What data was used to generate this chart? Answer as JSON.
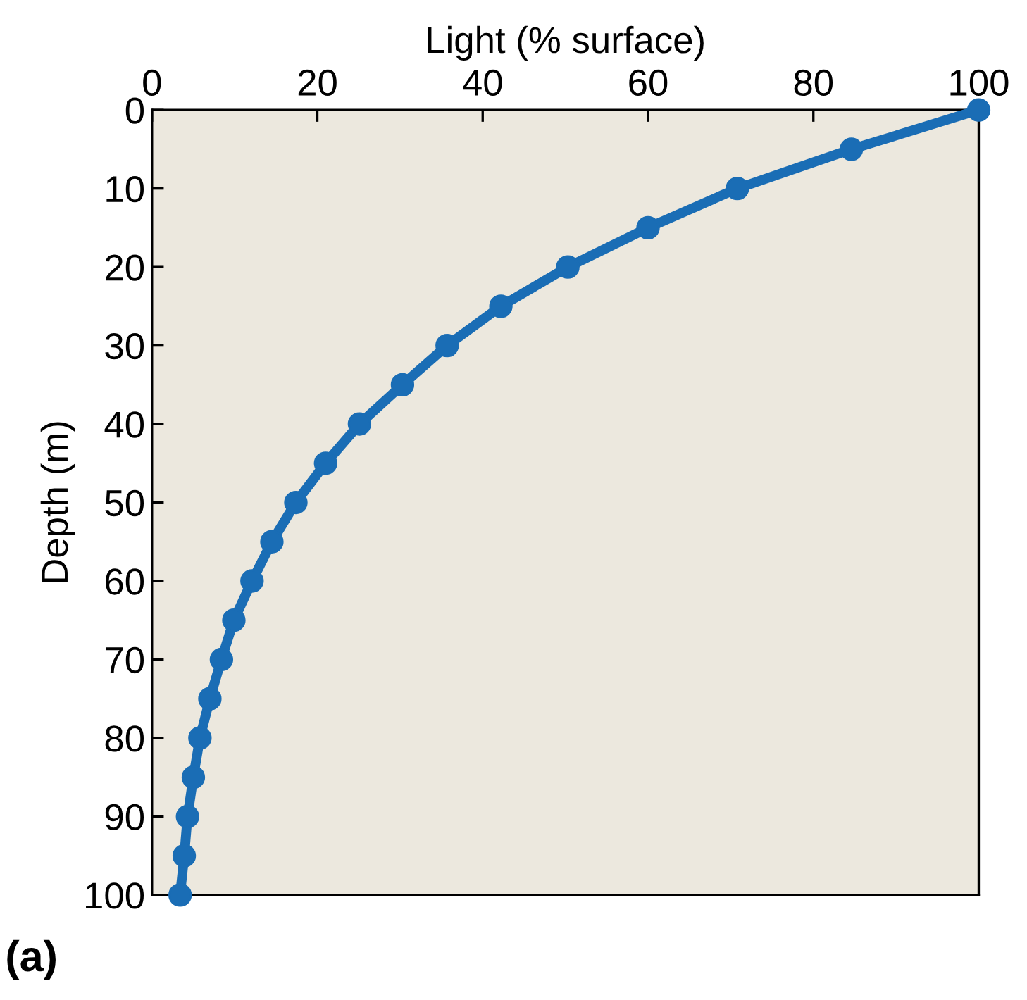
{
  "chart_data": {
    "type": "line",
    "xlabel": "Light (% surface)",
    "ylabel": "Depth (m)",
    "x": [
      100,
      84.6,
      70.8,
      60,
      50.3,
      42.2,
      35.7,
      30.3,
      25.1,
      21,
      17.4,
      14.5,
      12.1,
      9.9,
      8.4,
      7,
      5.8,
      5,
      4.3,
      3.9,
      3.4
    ],
    "series": [
      {
        "color": "#1a6db5",
        "values": [
          0,
          5,
          10,
          15,
          20,
          25,
          30,
          35,
          40,
          45,
          50,
          55,
          60,
          65,
          70,
          75,
          80,
          85,
          90,
          95,
          100
        ]
      }
    ],
    "xlim": [
      0,
      100
    ],
    "xticks": [
      0,
      20,
      40,
      60,
      80,
      100
    ],
    "ylim": [
      100,
      0
    ],
    "yticks": [
      0,
      10,
      20,
      30,
      40,
      50,
      60,
      70,
      80,
      90,
      100
    ],
    "marker": "circle",
    "line_style": "solid",
    "grid": false,
    "legend": false,
    "annotations": [
      "(a)"
    ]
  }
}
